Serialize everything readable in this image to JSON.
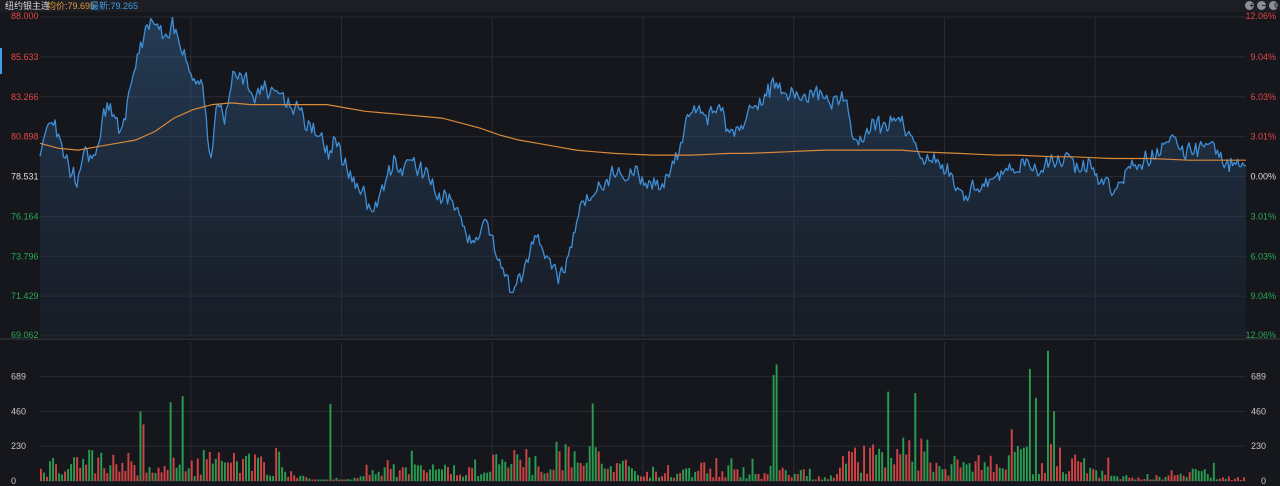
{
  "header": {
    "title": "纽约银主连",
    "avg_label": "均价:79.695",
    "last_label": "最新:79.265"
  },
  "controls": [
    {
      "name": "zoom-in-button",
      "icon": "plus-circle-icon",
      "glyph": "+"
    },
    {
      "name": "zoom-out-button",
      "icon": "minus-circle-icon",
      "glyph": "−"
    },
    {
      "name": "settings-button",
      "icon": "gear-icon",
      "glyph": "⚙"
    }
  ],
  "colors": {
    "price_line": "#3f8fd8",
    "avg_line": "#d9893a",
    "up": "#e04848",
    "down": "#2aa855",
    "neutral": "#dcdcdc",
    "grid": "#2a2b32"
  },
  "chart_data": [
    {
      "type": "line",
      "title": "",
      "series": [
        {
          "values": [
            79.5,
            81.9,
            81.6,
            80.2,
            79.0,
            78.3,
            80.5,
            79.2,
            80.9,
            82.8,
            82.2,
            81.0,
            83.5,
            85.4,
            86.8,
            87.9,
            87.3,
            86.7,
            87.6,
            86.1,
            85.2,
            84.0,
            84.1,
            79.4,
            82.9,
            81.7,
            84.7,
            84.5,
            84.3,
            83.1,
            83.9,
            83.3,
            83.8,
            83.1,
            82.5,
            83.0,
            81.5,
            81.3,
            81.0,
            79.7,
            80.8,
            79.5,
            78.4,
            78.0,
            77.3,
            76.1,
            77.4,
            78.5,
            79.6,
            78.8,
            79.5,
            79.1,
            78.9,
            78.1,
            77.1,
            77.4,
            76.7,
            75.9,
            74.7,
            74.5,
            75.9,
            75.0,
            73.4,
            72.6,
            71.6,
            72.6,
            73.4,
            75.1,
            74.1,
            73.5,
            72.6,
            73.1,
            74.8,
            76.6,
            77.3,
            77.6,
            78.0,
            78.6,
            79.0,
            78.5,
            78.9,
            78.6,
            78.0,
            78.2,
            78.0,
            78.8,
            79.7,
            81.1,
            82.5,
            82.4,
            82.0,
            82.3,
            82.8,
            81.2,
            81.2,
            81.5,
            82.7,
            82.5,
            83.4,
            84.0,
            83.9,
            83.6,
            83.2,
            83.3,
            83.3,
            83.5,
            83.4,
            82.8,
            83.1,
            82.9,
            80.7,
            80.7,
            81.3,
            81.8,
            81.3,
            82.0,
            82.0,
            81.4,
            80.8,
            79.9,
            79.3,
            79.6,
            79.0,
            78.8,
            77.9,
            77.3,
            78.0,
            77.9,
            78.2,
            78.3,
            78.6,
            79.0,
            78.6,
            79.6,
            79.1,
            78.8,
            79.3,
            79.5,
            79.5,
            79.8,
            79.1,
            79.2,
            79.2,
            78.5,
            78.3,
            77.6,
            78.3,
            78.9,
            79.3,
            79.5,
            79.5,
            79.9,
            80.7,
            80.9,
            80.3,
            80.0,
            80.1,
            80.1,
            80.5,
            80.2,
            79.3,
            79.3,
            79.3,
            79.3
          ]
        },
        {
          "values": [
            80.5,
            80.2,
            80.1,
            80.3,
            80.5,
            80.7,
            81.2,
            82.0,
            82.5,
            82.8,
            82.9,
            82.8,
            82.8,
            82.8,
            82.8,
            82.8,
            82.6,
            82.4,
            82.3,
            82.2,
            82.1,
            82.0,
            81.7,
            81.4,
            81.0,
            80.7,
            80.5,
            80.3,
            80.1,
            80.0,
            79.9,
            79.85,
            79.8,
            79.8,
            79.8,
            79.85,
            79.9,
            79.9,
            79.95,
            80.0,
            80.05,
            80.1,
            80.1,
            80.1,
            80.1,
            80.1,
            80.0,
            79.95,
            79.9,
            79.85,
            79.8,
            79.8,
            79.75,
            79.7,
            79.7,
            79.65,
            79.6,
            79.6,
            79.6,
            79.55,
            79.5,
            79.5,
            79.5,
            79.5
          ]
        }
      ],
      "ylim": [
        69.062,
        88.0
      ],
      "y_ticks_left": [
        "88.000",
        "85.633",
        "83.266",
        "80.898",
        "78.531",
        "76.164",
        "73.796",
        "71.429",
        "69.062"
      ],
      "y_ticks_right": [
        "12.06%",
        "9.04%",
        "6.03%",
        "3.01%",
        "0.00%",
        "3.01%",
        "6.03%",
        "9.04%",
        "12.06%"
      ],
      "grid": true,
      "legend": "none"
    },
    {
      "type": "bar",
      "title": "",
      "ylim": [
        0,
        918
      ],
      "y_ticks": [
        "689",
        "460",
        "230",
        "0"
      ],
      "bar_count": 400,
      "seed": 20240517,
      "spikes": [
        {
          "at": 0.107,
          "value": 520
        },
        {
          "at": 0.118,
          "value": 560
        },
        {
          "at": 0.082,
          "value": 460
        },
        {
          "at": 0.24,
          "value": 510
        },
        {
          "at": 0.61,
          "value": 700
        },
        {
          "at": 0.612,
          "value": 770
        },
        {
          "at": 0.705,
          "value": 590
        },
        {
          "at": 0.728,
          "value": 580
        },
        {
          "at": 0.823,
          "value": 740
        },
        {
          "at": 0.836,
          "value": 860
        },
        {
          "at": 0.827,
          "value": 550
        },
        {
          "at": 0.975,
          "value": 120
        }
      ],
      "grid": true,
      "legend": "none"
    }
  ]
}
